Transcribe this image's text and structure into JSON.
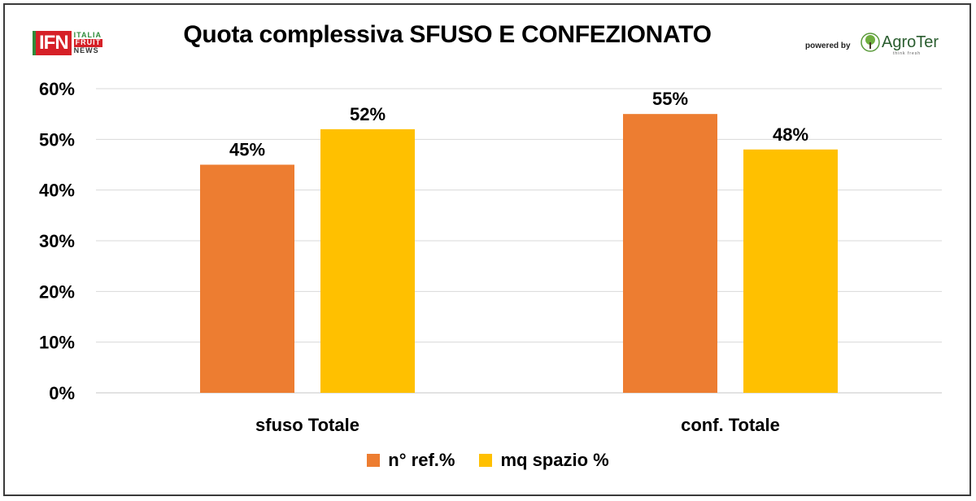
{
  "branding": {
    "ifn_main": "IFN",
    "ifn_line1": "ITALIA",
    "ifn_line2": "FRUIT",
    "ifn_line3": "NEWS",
    "powered_by": "powered by",
    "agroter": "AgroTer",
    "agroter_tagline": "think fresh"
  },
  "colors": {
    "orange": "#ED7D31",
    "yellow": "#FFC000",
    "grid": "#d9d9d9"
  },
  "chart_data": {
    "type": "bar",
    "title": "Quota complessiva SFUSO E CONFEZIONATO",
    "categories": [
      "sfuso Totale",
      "conf. Totale"
    ],
    "series": [
      {
        "name": "n° ref.%",
        "values": [
          45,
          55
        ],
        "labels": [
          "45%",
          "55%"
        ],
        "color": "#ED7D31"
      },
      {
        "name": "mq spazio %",
        "values": [
          52,
          48
        ],
        "labels": [
          "52%",
          "48%"
        ],
        "color": "#FFC000"
      }
    ],
    "ylim": [
      0,
      60
    ],
    "yticks": [
      "0%",
      "10%",
      "20%",
      "30%",
      "40%",
      "50%",
      "60%"
    ],
    "grid": true,
    "legend": "bottom",
    "xlabel": "",
    "ylabel": ""
  }
}
